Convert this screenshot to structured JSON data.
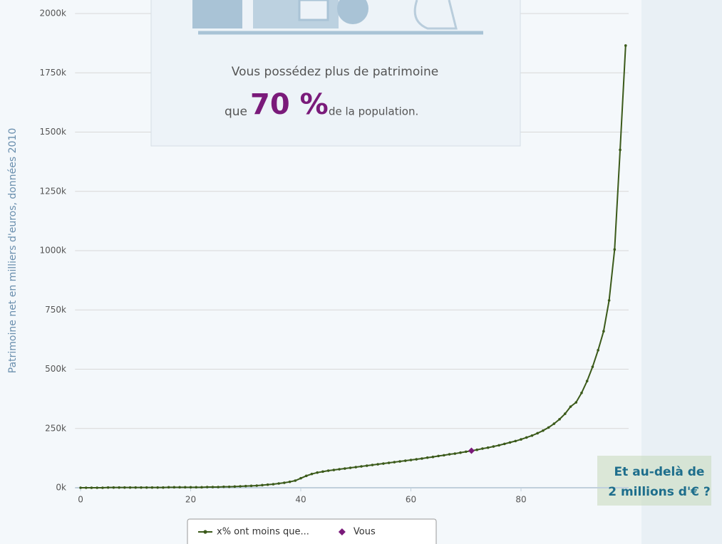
{
  "chart_data": {
    "type": "line",
    "ylabel": "Patrimoine net en milliers d'euros, données 2010",
    "annotations": [
      "Vous possédez plus de patrimoine",
      "que",
      "70 %",
      "de la population.",
      "Et au-delà de",
      "2 millions d'€ ?"
    ],
    "xlim": [
      -1,
      100
    ],
    "xticks": [
      0,
      20,
      40,
      60,
      80
    ],
    "ylim": [
      0,
      2000
    ],
    "yticks": [
      {
        "value": 0,
        "label": "0k"
      },
      {
        "value": 250,
        "label": "250k"
      },
      {
        "value": 500,
        "label": "500k"
      },
      {
        "value": 750,
        "label": "750k"
      },
      {
        "value": 1000,
        "label": "1000k"
      },
      {
        "value": 1250,
        "label": "1250k"
      },
      {
        "value": 1500,
        "label": "1500k"
      },
      {
        "value": 1750,
        "label": "1750k"
      },
      {
        "value": 2000,
        "label": "2000k"
      }
    ],
    "grid": true,
    "series": [
      {
        "name": "x% ont moins que...",
        "color": "#3b5a1a",
        "marker": "circle",
        "x": [
          0,
          1,
          2,
          3,
          4,
          5,
          6,
          7,
          8,
          9,
          10,
          11,
          12,
          13,
          14,
          15,
          16,
          17,
          18,
          19,
          20,
          21,
          22,
          23,
          24,
          25,
          26,
          27,
          28,
          29,
          30,
          31,
          32,
          33,
          34,
          35,
          36,
          37,
          38,
          39,
          40,
          41,
          42,
          43,
          44,
          45,
          46,
          47,
          48,
          49,
          50,
          51,
          52,
          53,
          54,
          55,
          56,
          57,
          58,
          59,
          60,
          61,
          62,
          63,
          64,
          65,
          66,
          67,
          68,
          69,
          70,
          71,
          72,
          73,
          74,
          75,
          76,
          77,
          78,
          79,
          80,
          81,
          82,
          83,
          84,
          85,
          86,
          87,
          88,
          89,
          90,
          91,
          92,
          93,
          94,
          95,
          96,
          97,
          98,
          99
        ],
        "values": [
          0,
          0,
          0,
          0,
          0,
          1,
          1,
          1,
          1,
          1,
          1,
          1,
          1,
          1,
          1,
          1,
          2,
          2,
          2,
          2,
          2,
          2,
          2,
          3,
          3,
          3,
          4,
          4,
          5,
          6,
          7,
          8,
          9,
          11,
          13,
          15,
          18,
          21,
          25,
          30,
          40,
          50,
          58,
          64,
          68,
          72,
          75,
          78,
          81,
          84,
          87,
          90,
          93,
          96,
          99,
          102,
          105,
          108,
          111,
          114,
          117,
          120,
          123,
          127,
          130,
          134,
          137,
          141,
          144,
          148,
          152,
          156,
          160,
          165,
          169,
          174,
          179,
          185,
          191,
          197,
          204,
          212,
          220,
          230,
          241,
          254,
          270,
          289,
          312,
          342,
          360,
          400,
          450,
          510,
          580,
          660,
          790,
          1005,
          1425,
          1865
        ]
      },
      {
        "name": "Vous",
        "color": "#7a1a7a",
        "marker": "diamond",
        "x": [
          71
        ],
        "values": [
          156
        ]
      }
    ]
  }
}
